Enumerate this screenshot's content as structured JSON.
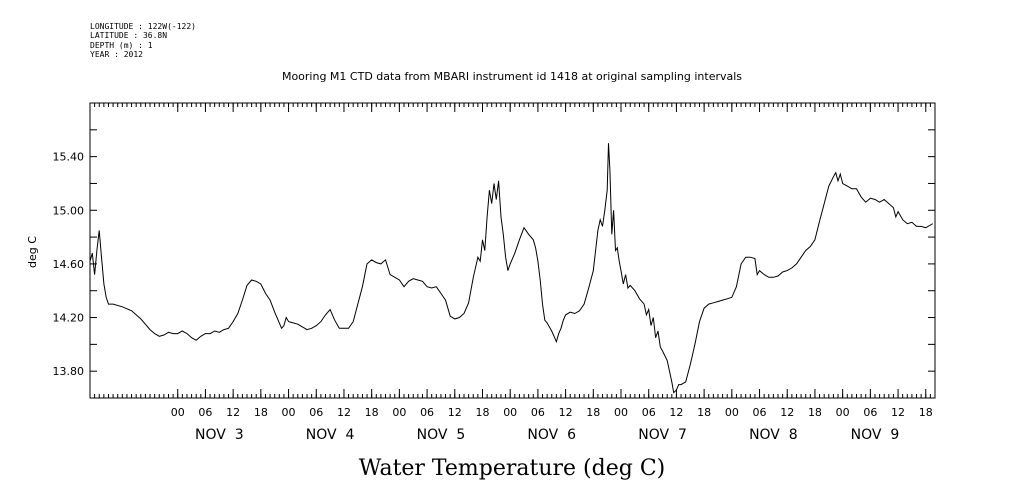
{
  "meta": {
    "longitude": "LONGITUDE : 122W(-122)",
    "latitude": "LATITUDE : 36.8N",
    "depth": "DEPTH (m) : 1",
    "year": "YEAR : 2012"
  },
  "chart_data": {
    "type": "line",
    "title": "Mooring M1 CTD data from MBARI instrument id 1418 at original sampling intervals",
    "xlabel": "Water Temperature (deg C)",
    "ylabel": "deg C",
    "ylim": [
      13.6,
      15.8
    ],
    "y_ticks": [
      "13.80",
      "14.20",
      "14.60",
      "15.00",
      "15.40"
    ],
    "y_tick_values": [
      13.8,
      14.2,
      14.6,
      15.0,
      15.4
    ],
    "x_unit": "hours since 2012-11-03 00:00",
    "xlim": [
      -19,
      164
    ],
    "hour_ticks": [
      "00",
      "06",
      "12",
      "18",
      "00",
      "06",
      "12",
      "18",
      "00",
      "06",
      "12",
      "18",
      "00",
      "06",
      "12",
      "18",
      "00",
      "06",
      "12",
      "18",
      "00",
      "06",
      "12",
      "18",
      "00",
      "06",
      "12",
      "18"
    ],
    "hour_tick_values": [
      0,
      6,
      12,
      18,
      24,
      30,
      36,
      42,
      48,
      54,
      60,
      66,
      72,
      78,
      84,
      90,
      96,
      102,
      108,
      114,
      120,
      126,
      132,
      138,
      144,
      150,
      156,
      162
    ],
    "day_labels": [
      "NOV  3",
      "NOV  4",
      "NOV  5",
      "NOV  6",
      "NOV  7",
      "NOV  8",
      "NOV  9"
    ],
    "day_label_centers": [
      9,
      33,
      57,
      81,
      105,
      129,
      151
    ],
    "grid": false,
    "series": [
      {
        "points": [
          [
            -19,
            14.62
          ],
          [
            -18.5,
            14.68
          ],
          [
            -18,
            14.52
          ],
          [
            -17.5,
            14.7
          ],
          [
            -17,
            14.85
          ],
          [
            -16.5,
            14.65
          ],
          [
            -16,
            14.45
          ],
          [
            -15.5,
            14.35
          ],
          [
            -15,
            14.3
          ],
          [
            -14,
            14.3
          ],
          [
            -12,
            14.28
          ],
          [
            -10,
            14.25
          ],
          [
            -8,
            14.19
          ],
          [
            -7,
            14.15
          ],
          [
            -6,
            14.11
          ],
          [
            -5,
            14.08
          ],
          [
            -4,
            14.06
          ],
          [
            -3,
            14.07
          ],
          [
            -2,
            14.09
          ],
          [
            -1,
            14.08
          ],
          [
            0,
            14.08
          ],
          [
            1,
            14.1
          ],
          [
            2,
            14.08
          ],
          [
            3,
            14.05
          ],
          [
            4,
            14.03
          ],
          [
            5,
            14.06
          ],
          [
            6,
            14.08
          ],
          [
            7,
            14.08
          ],
          [
            8,
            14.1
          ],
          [
            9,
            14.09
          ],
          [
            10,
            14.11
          ],
          [
            11,
            14.12
          ],
          [
            12,
            14.17
          ],
          [
            13,
            14.23
          ],
          [
            14,
            14.33
          ],
          [
            15,
            14.44
          ],
          [
            16,
            14.48
          ],
          [
            17,
            14.47
          ],
          [
            18,
            14.45
          ],
          [
            19,
            14.38
          ],
          [
            20,
            14.33
          ],
          [
            21,
            14.24
          ],
          [
            22,
            14.16
          ],
          [
            22.5,
            14.12
          ],
          [
            23,
            14.14
          ],
          [
            23.5,
            14.2
          ],
          [
            24,
            14.17
          ],
          [
            25,
            14.16
          ],
          [
            26,
            14.15
          ],
          [
            27,
            14.13
          ],
          [
            28,
            14.11
          ],
          [
            29,
            14.12
          ],
          [
            30,
            14.14
          ],
          [
            31,
            14.17
          ],
          [
            32,
            14.22
          ],
          [
            33,
            14.26
          ],
          [
            34,
            14.18
          ],
          [
            35,
            14.12
          ],
          [
            36,
            14.12
          ],
          [
            37,
            14.12
          ],
          [
            38,
            14.17
          ],
          [
            39,
            14.3
          ],
          [
            40,
            14.43
          ],
          [
            41,
            14.6
          ],
          [
            42,
            14.63
          ],
          [
            43,
            14.61
          ],
          [
            44,
            14.6
          ],
          [
            45,
            14.63
          ],
          [
            46,
            14.52
          ],
          [
            47,
            14.5
          ],
          [
            48,
            14.48
          ],
          [
            49,
            14.43
          ],
          [
            50,
            14.47
          ],
          [
            51,
            14.49
          ],
          [
            52,
            14.48
          ],
          [
            53,
            14.47
          ],
          [
            54,
            14.43
          ],
          [
            55,
            14.42
          ],
          [
            56,
            14.43
          ],
          [
            57,
            14.38
          ],
          [
            58,
            14.33
          ],
          [
            59,
            14.21
          ],
          [
            60,
            14.19
          ],
          [
            61,
            14.2
          ],
          [
            62,
            14.23
          ],
          [
            63,
            14.31
          ],
          [
            64,
            14.5
          ],
          [
            65,
            14.65
          ],
          [
            65.5,
            14.62
          ],
          [
            66,
            14.78
          ],
          [
            66.5,
            14.7
          ],
          [
            67,
            14.95
          ],
          [
            67.5,
            15.15
          ],
          [
            68,
            15.05
          ],
          [
            68.5,
            15.2
          ],
          [
            69,
            15.08
          ],
          [
            69.5,
            15.22
          ],
          [
            70,
            14.95
          ],
          [
            70.5,
            14.82
          ],
          [
            71,
            14.65
          ],
          [
            71.5,
            14.55
          ],
          [
            72,
            14.6
          ],
          [
            73,
            14.68
          ],
          [
            74,
            14.78
          ],
          [
            75,
            14.87
          ],
          [
            76,
            14.82
          ],
          [
            77,
            14.78
          ],
          [
            77.5,
            14.72
          ],
          [
            78,
            14.62
          ],
          [
            78.5,
            14.48
          ],
          [
            79,
            14.3
          ],
          [
            79.5,
            14.18
          ],
          [
            80,
            14.16
          ],
          [
            81,
            14.1
          ],
          [
            82,
            14.02
          ],
          [
            82.5,
            14.08
          ],
          [
            83,
            14.12
          ],
          [
            83.5,
            14.18
          ],
          [
            84,
            14.22
          ],
          [
            85,
            14.24
          ],
          [
            86,
            14.23
          ],
          [
            87,
            14.25
          ],
          [
            88,
            14.3
          ],
          [
            89,
            14.42
          ],
          [
            90,
            14.55
          ],
          [
            90.5,
            14.7
          ],
          [
            91,
            14.85
          ],
          [
            91.5,
            14.93
          ],
          [
            92,
            14.88
          ],
          [
            92.5,
            15.0
          ],
          [
            93,
            15.15
          ],
          [
            93.3,
            15.5
          ],
          [
            93.6,
            15.3
          ],
          [
            94,
            14.82
          ],
          [
            94.4,
            15.0
          ],
          [
            94.8,
            14.7
          ],
          [
            95.2,
            14.72
          ],
          [
            95.6,
            14.62
          ],
          [
            96,
            14.55
          ],
          [
            96.5,
            14.45
          ],
          [
            97,
            14.52
          ],
          [
            97.5,
            14.42
          ],
          [
            98,
            14.44
          ],
          [
            99,
            14.4
          ],
          [
            100,
            14.34
          ],
          [
            101,
            14.3
          ],
          [
            101.5,
            14.22
          ],
          [
            102,
            14.26
          ],
          [
            102.5,
            14.14
          ],
          [
            103,
            14.2
          ],
          [
            103.5,
            14.05
          ],
          [
            104,
            14.1
          ],
          [
            104.5,
            13.98
          ],
          [
            105,
            13.95
          ],
          [
            106,
            13.88
          ],
          [
            106.5,
            13.8
          ],
          [
            107,
            13.72
          ],
          [
            107.4,
            13.64
          ],
          [
            108,
            13.66
          ],
          [
            108.5,
            13.7
          ],
          [
            109,
            13.7
          ],
          [
            110,
            13.72
          ],
          [
            111,
            13.85
          ],
          [
            112,
            14.0
          ],
          [
            113,
            14.17
          ],
          [
            114,
            14.27
          ],
          [
            115,
            14.3
          ],
          [
            116,
            14.31
          ],
          [
            117,
            14.32
          ],
          [
            118,
            14.33
          ],
          [
            119,
            14.34
          ],
          [
            120,
            14.35
          ],
          [
            121,
            14.43
          ],
          [
            122,
            14.6
          ],
          [
            123,
            14.65
          ],
          [
            124,
            14.65
          ],
          [
            125,
            14.64
          ],
          [
            125.5,
            14.52
          ],
          [
            126,
            14.55
          ],
          [
            127,
            14.52
          ],
          [
            128,
            14.5
          ],
          [
            129,
            14.5
          ],
          [
            130,
            14.51
          ],
          [
            131,
            14.54
          ],
          [
            132,
            14.55
          ],
          [
            133,
            14.57
          ],
          [
            134,
            14.6
          ],
          [
            135,
            14.65
          ],
          [
            136,
            14.7
          ],
          [
            137,
            14.73
          ],
          [
            138,
            14.78
          ],
          [
            139,
            14.92
          ],
          [
            140,
            15.05
          ],
          [
            141,
            15.18
          ],
          [
            142,
            15.25
          ],
          [
            142.5,
            15.28
          ],
          [
            143,
            15.22
          ],
          [
            143.5,
            15.27
          ],
          [
            144,
            15.2
          ],
          [
            145,
            15.18
          ],
          [
            146,
            15.16
          ],
          [
            147,
            15.16
          ],
          [
            148,
            15.1
          ],
          [
            149,
            15.06
          ],
          [
            150,
            15.09
          ],
          [
            151,
            15.08
          ],
          [
            152,
            15.06
          ],
          [
            153,
            15.08
          ],
          [
            154,
            15.05
          ],
          [
            155,
            15.02
          ],
          [
            155.5,
            14.95
          ],
          [
            156,
            14.99
          ],
          [
            157,
            14.93
          ],
          [
            158,
            14.9
          ],
          [
            159,
            14.91
          ],
          [
            160,
            14.88
          ],
          [
            161,
            14.88
          ],
          [
            162,
            14.87
          ],
          [
            163,
            14.89
          ],
          [
            163.5,
            14.9
          ]
        ]
      }
    ]
  }
}
